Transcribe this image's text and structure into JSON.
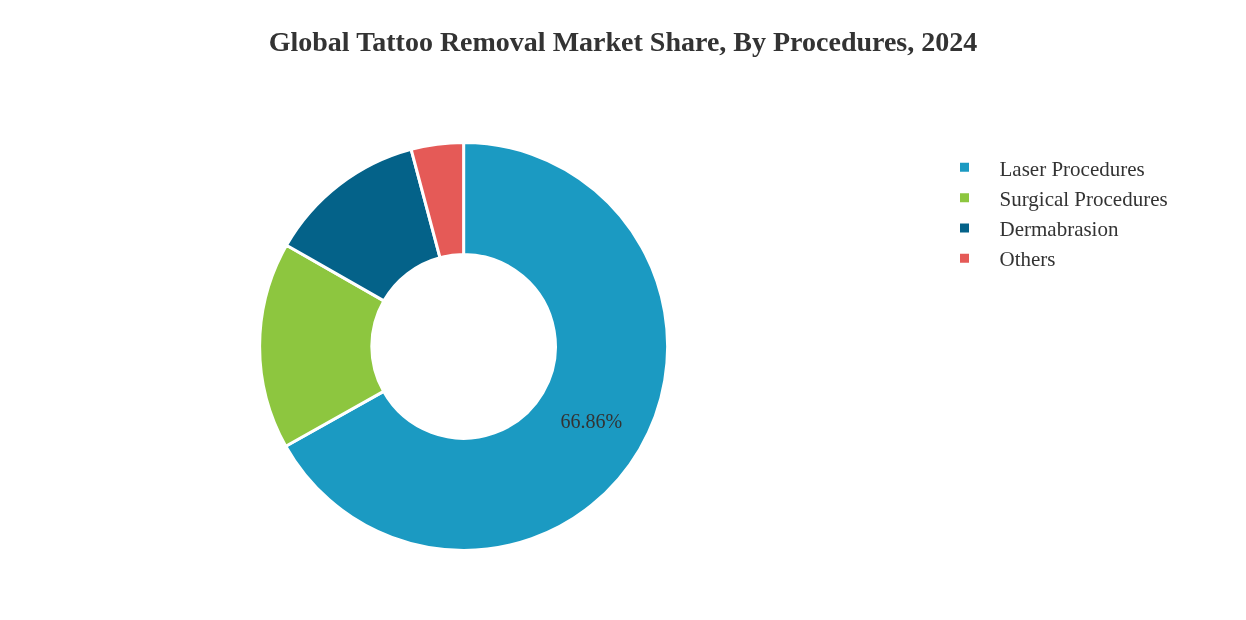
{
  "chart_data": {
    "type": "donut",
    "title": "Global Tattoo Removal Market Share, By Procedures, 2024",
    "categories": [
      "Laser Procedures",
      "Surgical Procedures",
      "Dermabrasion",
      "Others"
    ],
    "values": [
      66.86,
      16.4,
      12.6,
      4.14
    ],
    "colors": [
      "#1b9ac2",
      "#8dc63f",
      "#046289",
      "#e55a57"
    ],
    "value_labels": [
      "66.86%",
      null,
      null,
      null
    ],
    "legend": "top right"
  }
}
